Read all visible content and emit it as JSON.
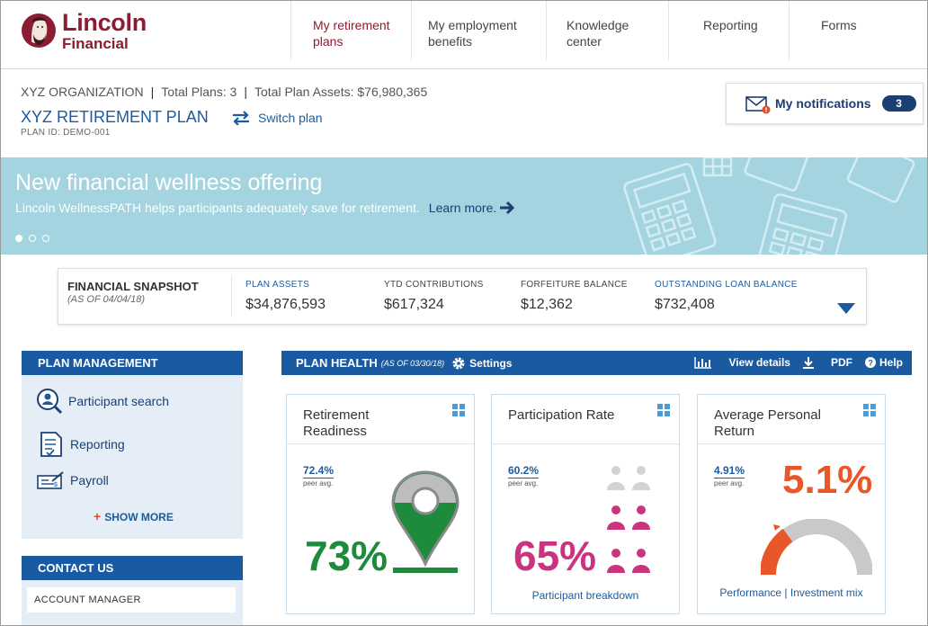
{
  "header": {
    "logo_line1": "Lincoln",
    "logo_line2": "Financial",
    "nav": [
      {
        "line1": "My retirement",
        "line2": "plans"
      },
      {
        "line1": "My employment",
        "line2": "benefits"
      },
      {
        "line1": "Knowledge",
        "line2": "center"
      },
      {
        "line1": "Reporting",
        "line2": ""
      },
      {
        "line1": "Forms",
        "line2": ""
      }
    ]
  },
  "org": {
    "name": "XYZ ORGANIZATION",
    "total_plans": "Total Plans: 3",
    "total_assets": "Total Plan Assets: $76,980,365",
    "separator": "|",
    "plan_name": "XYZ RETIREMENT PLAN",
    "plan_id": "PLAN ID: DEMO-001",
    "switch_label": "Switch plan"
  },
  "notifications": {
    "label": "My notifications",
    "count": "3"
  },
  "banner": {
    "title": "New financial wellness offering",
    "subtitle": "Lincoln WellnessPATH helps participants adequately save for retirement.",
    "link": "Learn more."
  },
  "snapshot": {
    "title": "FINANCIAL SNAPSHOT",
    "date": "(AS OF 04/04/18)",
    "items": [
      {
        "label": "PLAN ASSETS",
        "value": "$34,876,593"
      },
      {
        "label": "YTD CONTRIBUTIONS",
        "value": "$617,324"
      },
      {
        "label": "FORFEITURE BALANCE",
        "value": "$12,362"
      },
      {
        "label": "OUTSTANDING LOAN BALANCE",
        "value": "$732,408"
      }
    ]
  },
  "plan_management": {
    "title": "PLAN MANAGEMENT",
    "items": [
      "Participant search",
      "Reporting",
      "Payroll"
    ],
    "show_more": "SHOW MORE"
  },
  "contact_us": {
    "title": "CONTACT US",
    "item": "ACCOUNT MANAGER"
  },
  "plan_health": {
    "title": "PLAN HEALTH",
    "date": "(AS OF 03/30/18)",
    "settings": "Settings",
    "view_details": "View details",
    "pdf": "PDF",
    "help": "Help"
  },
  "cards": [
    {
      "title_l1": "Retirement",
      "title_l2": "Readiness",
      "peer_value": "72.4%",
      "peer_label": "peer avg.",
      "value": "73%",
      "link": "",
      "color": "#1e8a3c"
    },
    {
      "title_l1": "Participation Rate",
      "title_l2": "",
      "peer_value": "60.2%",
      "peer_label": "peer avg.",
      "value": "65%",
      "link": "Participant breakdown",
      "color": "#c8357e"
    },
    {
      "title_l1": "Average Personal",
      "title_l2": "Return",
      "peer_value": "4.91%",
      "peer_label": "peer avg.",
      "value": "5.1%",
      "link": "Performance | Investment mix",
      "color": "#e8572a"
    }
  ]
}
